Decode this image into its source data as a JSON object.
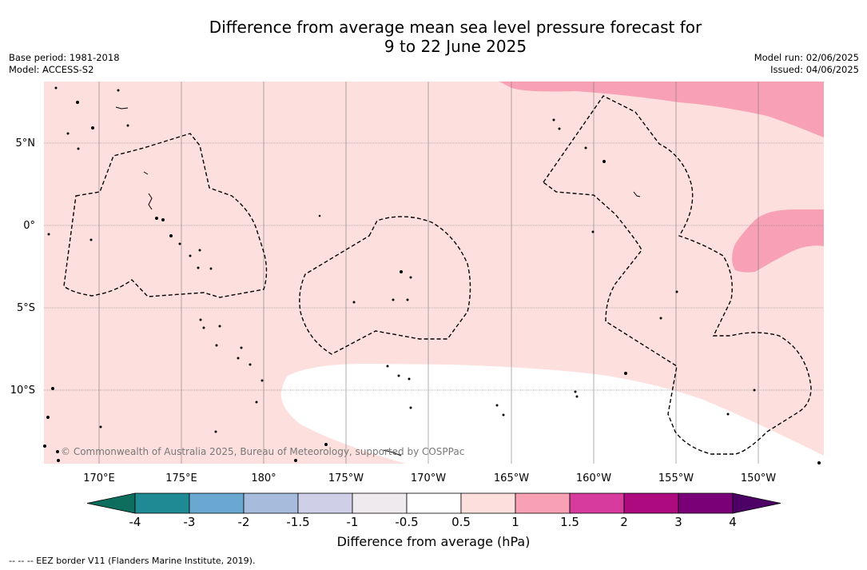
{
  "title": {
    "line1": "Difference from average mean sea level pressure forecast for",
    "line2": "9 to 22 June 2025"
  },
  "meta": {
    "base_period": "Base period: 1981-2018",
    "model": "Model: ACCESS-S2",
    "model_run": "Model run: 02/06/2025",
    "issued": "Issued: 04/06/2025"
  },
  "map": {
    "copyright": "© Commonwealth of Australia 2025, Bureau of Meteorology, supported by COSPPac",
    "lat_labels": [
      "5°N",
      "0°",
      "5°S",
      "10°S"
    ],
    "lon_labels": [
      "170°E",
      "175°E",
      "180°",
      "175°W",
      "170°W",
      "165°W",
      "160°W",
      "155°W",
      "150°W"
    ],
    "background_color": "#fde0de"
  },
  "colorbar": {
    "label": "Difference from average (hPa)",
    "ticks": [
      "-4",
      "-3",
      "-2",
      "-1.5",
      "-1",
      "-0.5",
      "0.5",
      "1",
      "1.5",
      "2",
      "3",
      "4"
    ],
    "colors": [
      "#1f8a93",
      "#6aa8d2",
      "#a7bbdc",
      "#cfd0e8",
      "#efeaee",
      "#ffffff",
      "#fde0de",
      "#f8a0b4",
      "#d83b9e",
      "#ad0a80",
      "#7a0077"
    ],
    "extend_low_color": "#0d6e5e",
    "extend_high_color": "#4d0066"
  },
  "footnote": "--  --  -- EEZ border V11 (Flanders Marine Institute, 2019)."
}
